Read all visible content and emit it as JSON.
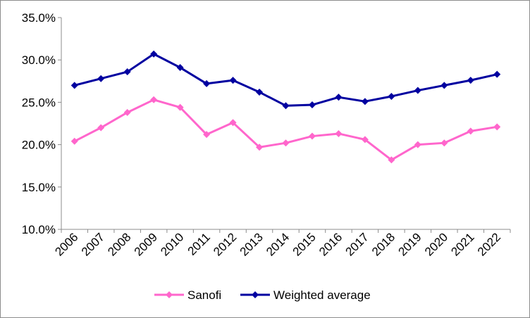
{
  "chart_data": {
    "type": "line",
    "title": "",
    "xlabel": "",
    "ylabel": "",
    "x": [
      "2006",
      "2007",
      "2008",
      "2009",
      "2010",
      "2011",
      "2012",
      "2013",
      "2014",
      "2015",
      "2016",
      "2017",
      "2018",
      "2019",
      "2020",
      "2021",
      "2022"
    ],
    "ylim": [
      10.0,
      35.0
    ],
    "yticks": [
      "10.0%",
      "15.0%",
      "20.0%",
      "25.0%",
      "30.0%",
      "35.0%"
    ],
    "ytick_values": [
      10,
      15,
      20,
      25,
      30,
      35
    ],
    "grid": false,
    "legend_position": "bottom",
    "series": [
      {
        "name": "Sanofi",
        "color": "#ff66cc",
        "marker": "diamond",
        "values": [
          20.4,
          22.0,
          23.8,
          25.3,
          24.4,
          21.2,
          22.6,
          19.7,
          20.2,
          21.0,
          21.3,
          20.6,
          18.2,
          20.0,
          20.2,
          21.6,
          22.1
        ]
      },
      {
        "name": "Weighted average",
        "color": "#0000a0",
        "marker": "diamond",
        "values": [
          27.0,
          27.8,
          28.6,
          30.7,
          29.1,
          27.2,
          27.6,
          26.2,
          24.6,
          24.7,
          25.6,
          25.1,
          25.7,
          26.4,
          27.0,
          27.6,
          28.3
        ]
      }
    ]
  }
}
